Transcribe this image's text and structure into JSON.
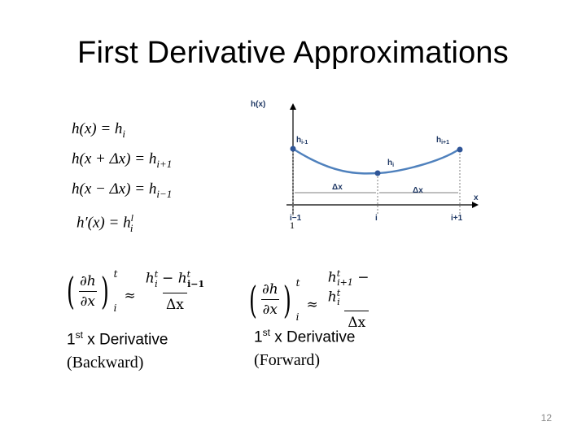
{
  "title": "First Derivative Approximations",
  "definitions": {
    "line1_lhs": "h(x) = h",
    "line1_sub": "i",
    "line2_lhs": "h(x + Δx) = h",
    "line2_sub": "i+1",
    "line3_lhs": "h(x − Δx) = h",
    "line3_sub": "i−1",
    "line4_lhs": "h′(x)  = h",
    "line4_sup": "l",
    "line4_sub": "i"
  },
  "diagram": {
    "y_axis_label": "h(x)",
    "x_axis_label": "x",
    "point_labels": [
      "h",
      "h",
      "h"
    ],
    "point_label_subs": [
      "i-1",
      "i",
      "i+1"
    ],
    "dx_labels": [
      "Δx",
      "Δx"
    ],
    "x_ticks": [
      "i−1",
      "i",
      "i+1"
    ],
    "stray_mark": "1"
  },
  "backward": {
    "lhs_num": "∂h",
    "lhs_den": "∂x",
    "lhs_sup": "t",
    "lhs_sub": "i",
    "approx": "≈",
    "rhs_num_a": "h",
    "rhs_num_a_sup": "t",
    "rhs_num_a_sub": "i",
    "rhs_minus": " − h",
    "rhs_num_b_sup": "t",
    "rhs_num_b_sub": "i−1",
    "rhs_den": "Δx",
    "caption_line1_pre": "1",
    "caption_line1_sup": "st",
    "caption_line1_post": " x Derivative",
    "caption_line2": "(Backward)"
  },
  "forward": {
    "lhs_num": "∂h",
    "lhs_den": "∂x",
    "lhs_sup": "t",
    "lhs_sub": "i",
    "approx": "≈",
    "rhs_num_a": "h",
    "rhs_num_a_sup": "t",
    "rhs_num_a_sub": "i+1",
    "rhs_minus": " − h",
    "rhs_num_b_sup": "t",
    "rhs_num_b_sub": "i",
    "rhs_den": "Δx",
    "caption_line1_pre": "1",
    "caption_line1_sup": "st",
    "caption_line1_post": " x Derivative",
    "caption_line2": "(Forward)"
  },
  "page_number": "12",
  "colors": {
    "curve": "#4f81bd",
    "points": "#2f5597",
    "axes": "#000000",
    "guides": "#7f7f7f"
  }
}
